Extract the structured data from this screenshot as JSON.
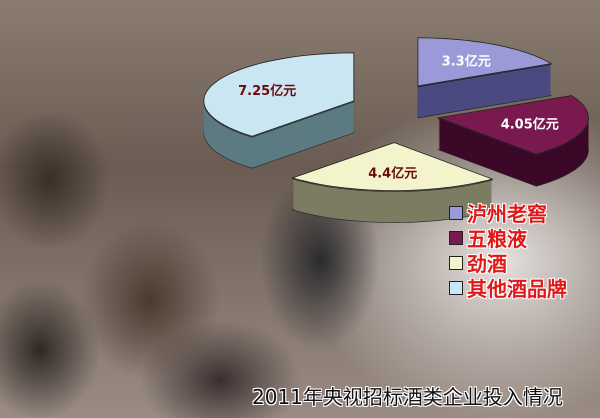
{
  "chart_data": {
    "type": "pie",
    "style": "3d-exploded",
    "title": "2011年央视招标酒类企业投入情况",
    "unit": "亿元",
    "legend_placement": "bottom-right",
    "slices": [
      {
        "name": "泸州老窖",
        "value": 3.3,
        "label": "3.3亿元",
        "color": "#9a9ad8",
        "side": "#4a4a80",
        "label_color": "#ffffff"
      },
      {
        "name": "五粮液",
        "value": 4.05,
        "label": "4.05亿元",
        "color": "#7a1850",
        "side": "#3c0828",
        "label_color": "#ffffff"
      },
      {
        "name": "劲酒",
        "value": 4.4,
        "label": "4.4亿元",
        "color": "#f4f4cc",
        "side": "#7c7c62",
        "label_color": "#6a0a0a"
      },
      {
        "name": "其他酒品牌",
        "value": 7.25,
        "label": "7.25亿元",
        "color": "#cae6f2",
        "side": "#5c7a82",
        "label_color": "#6a0a0a"
      }
    ]
  }
}
